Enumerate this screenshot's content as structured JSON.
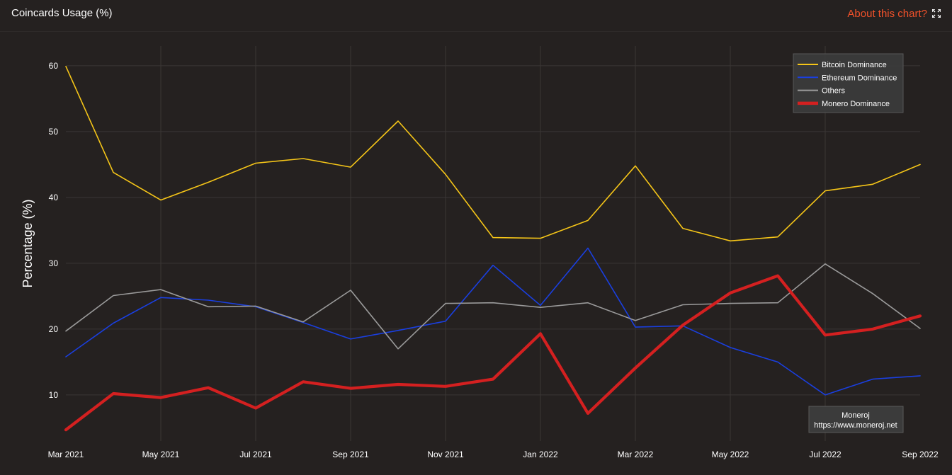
{
  "header": {
    "title": "Coincards Usage (%)",
    "about_label": "About this chart?"
  },
  "icons": {
    "expand": "expand-icon"
  },
  "credit": {
    "line1": "Moneroj",
    "line2": "https://www.moneroj.net"
  },
  "chart_data": {
    "type": "line",
    "ylabel": "Percentage (%)",
    "xlabel": "",
    "x_tick_labels": [
      "Mar 2021",
      "May 2021",
      "Jul 2021",
      "Sep 2021",
      "Nov 2021",
      "Jan 2022",
      "Mar 2022",
      "May 2022",
      "Jul 2022",
      "Sep 2022"
    ],
    "x": [
      "2021-03-01",
      "2021-04-01",
      "2021-05-01",
      "2021-06-01",
      "2021-07-01",
      "2021-08-01",
      "2021-09-01",
      "2021-10-01",
      "2021-11-01",
      "2021-12-01",
      "2022-01-01",
      "2022-02-01",
      "2022-03-01",
      "2022-04-01",
      "2022-05-01",
      "2022-06-01",
      "2022-07-01",
      "2022-08-01",
      "2022-09-01"
    ],
    "ylim": [
      3,
      63
    ],
    "y_ticks": [
      10,
      20,
      30,
      40,
      50,
      60
    ],
    "grid": true,
    "legend_position": "top-right",
    "series": [
      {
        "name": "Bitcoin Dominance",
        "color": "#f5c518",
        "width": 1.6,
        "values": [
          59.9,
          43.8,
          39.6,
          42.3,
          45.2,
          45.9,
          44.6,
          51.6,
          43.5,
          33.9,
          33.8,
          36.5,
          44.8,
          35.3,
          33.4,
          34.0,
          41.0,
          42.0,
          45.0
        ]
      },
      {
        "name": "Ethereum Dominance",
        "color": "#1a3fe0",
        "width": 1.6,
        "values": [
          15.8,
          20.9,
          24.8,
          24.4,
          23.4,
          21.0,
          18.5,
          19.8,
          21.2,
          29.7,
          23.6,
          32.3,
          20.3,
          20.5,
          17.2,
          15.0,
          10.0,
          12.4,
          12.9
        ]
      },
      {
        "name": "Others",
        "color": "#9a9a9a",
        "width": 1.6,
        "values": [
          19.7,
          25.1,
          26.0,
          23.4,
          23.5,
          21.1,
          25.9,
          17.0,
          23.9,
          24.0,
          23.3,
          24.0,
          21.3,
          23.7,
          23.9,
          24.0,
          29.9,
          25.4,
          20.1
        ]
      },
      {
        "name": "Monero Dominance",
        "color": "#d42020",
        "width": 4.2,
        "values": [
          4.7,
          10.2,
          9.6,
          11.1,
          8.0,
          12.0,
          11.0,
          11.6,
          11.3,
          12.4,
          19.3,
          7.2,
          14.1,
          20.6,
          25.5,
          28.1,
          19.1,
          20.0,
          22.0
        ]
      }
    ]
  }
}
